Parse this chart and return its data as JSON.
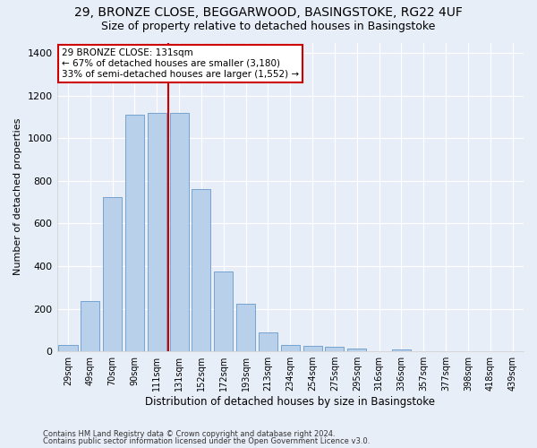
{
  "title_line1": "29, BRONZE CLOSE, BEGGARWOOD, BASINGSTOKE, RG22 4UF",
  "title_line2": "Size of property relative to detached houses in Basingstoke",
  "xlabel": "Distribution of detached houses by size in Basingstoke",
  "ylabel": "Number of detached properties",
  "categories": [
    "29sqm",
    "49sqm",
    "70sqm",
    "90sqm",
    "111sqm",
    "131sqm",
    "152sqm",
    "172sqm",
    "193sqm",
    "213sqm",
    "234sqm",
    "254sqm",
    "275sqm",
    "295sqm",
    "316sqm",
    "336sqm",
    "357sqm",
    "377sqm",
    "398sqm",
    "418sqm",
    "439sqm"
  ],
  "values": [
    30,
    235,
    725,
    1110,
    1120,
    1120,
    760,
    375,
    225,
    90,
    30,
    25,
    20,
    15,
    0,
    10,
    0,
    0,
    0,
    0,
    0
  ],
  "bar_color": "#b8d0ea",
  "bar_edge_color": "#6699cc",
  "annotation_text": "29 BRONZE CLOSE: 131sqm\n← 67% of detached houses are smaller (3,180)\n33% of semi-detached houses are larger (1,552) →",
  "annotation_box_color": "#ffffff",
  "annotation_box_edge": "#cc0000",
  "vline_color": "#cc0000",
  "footnote1": "Contains HM Land Registry data © Crown copyright and database right 2024.",
  "footnote2": "Contains public sector information licensed under the Open Government Licence v3.0.",
  "ylim": [
    0,
    1450
  ],
  "yticks": [
    0,
    200,
    400,
    600,
    800,
    1000,
    1200,
    1400
  ],
  "background_color": "#e8eef8",
  "grid_color": "#ffffff",
  "title_fontsize": 10,
  "subtitle_fontsize": 9,
  "highlight_bar_index": 5
}
